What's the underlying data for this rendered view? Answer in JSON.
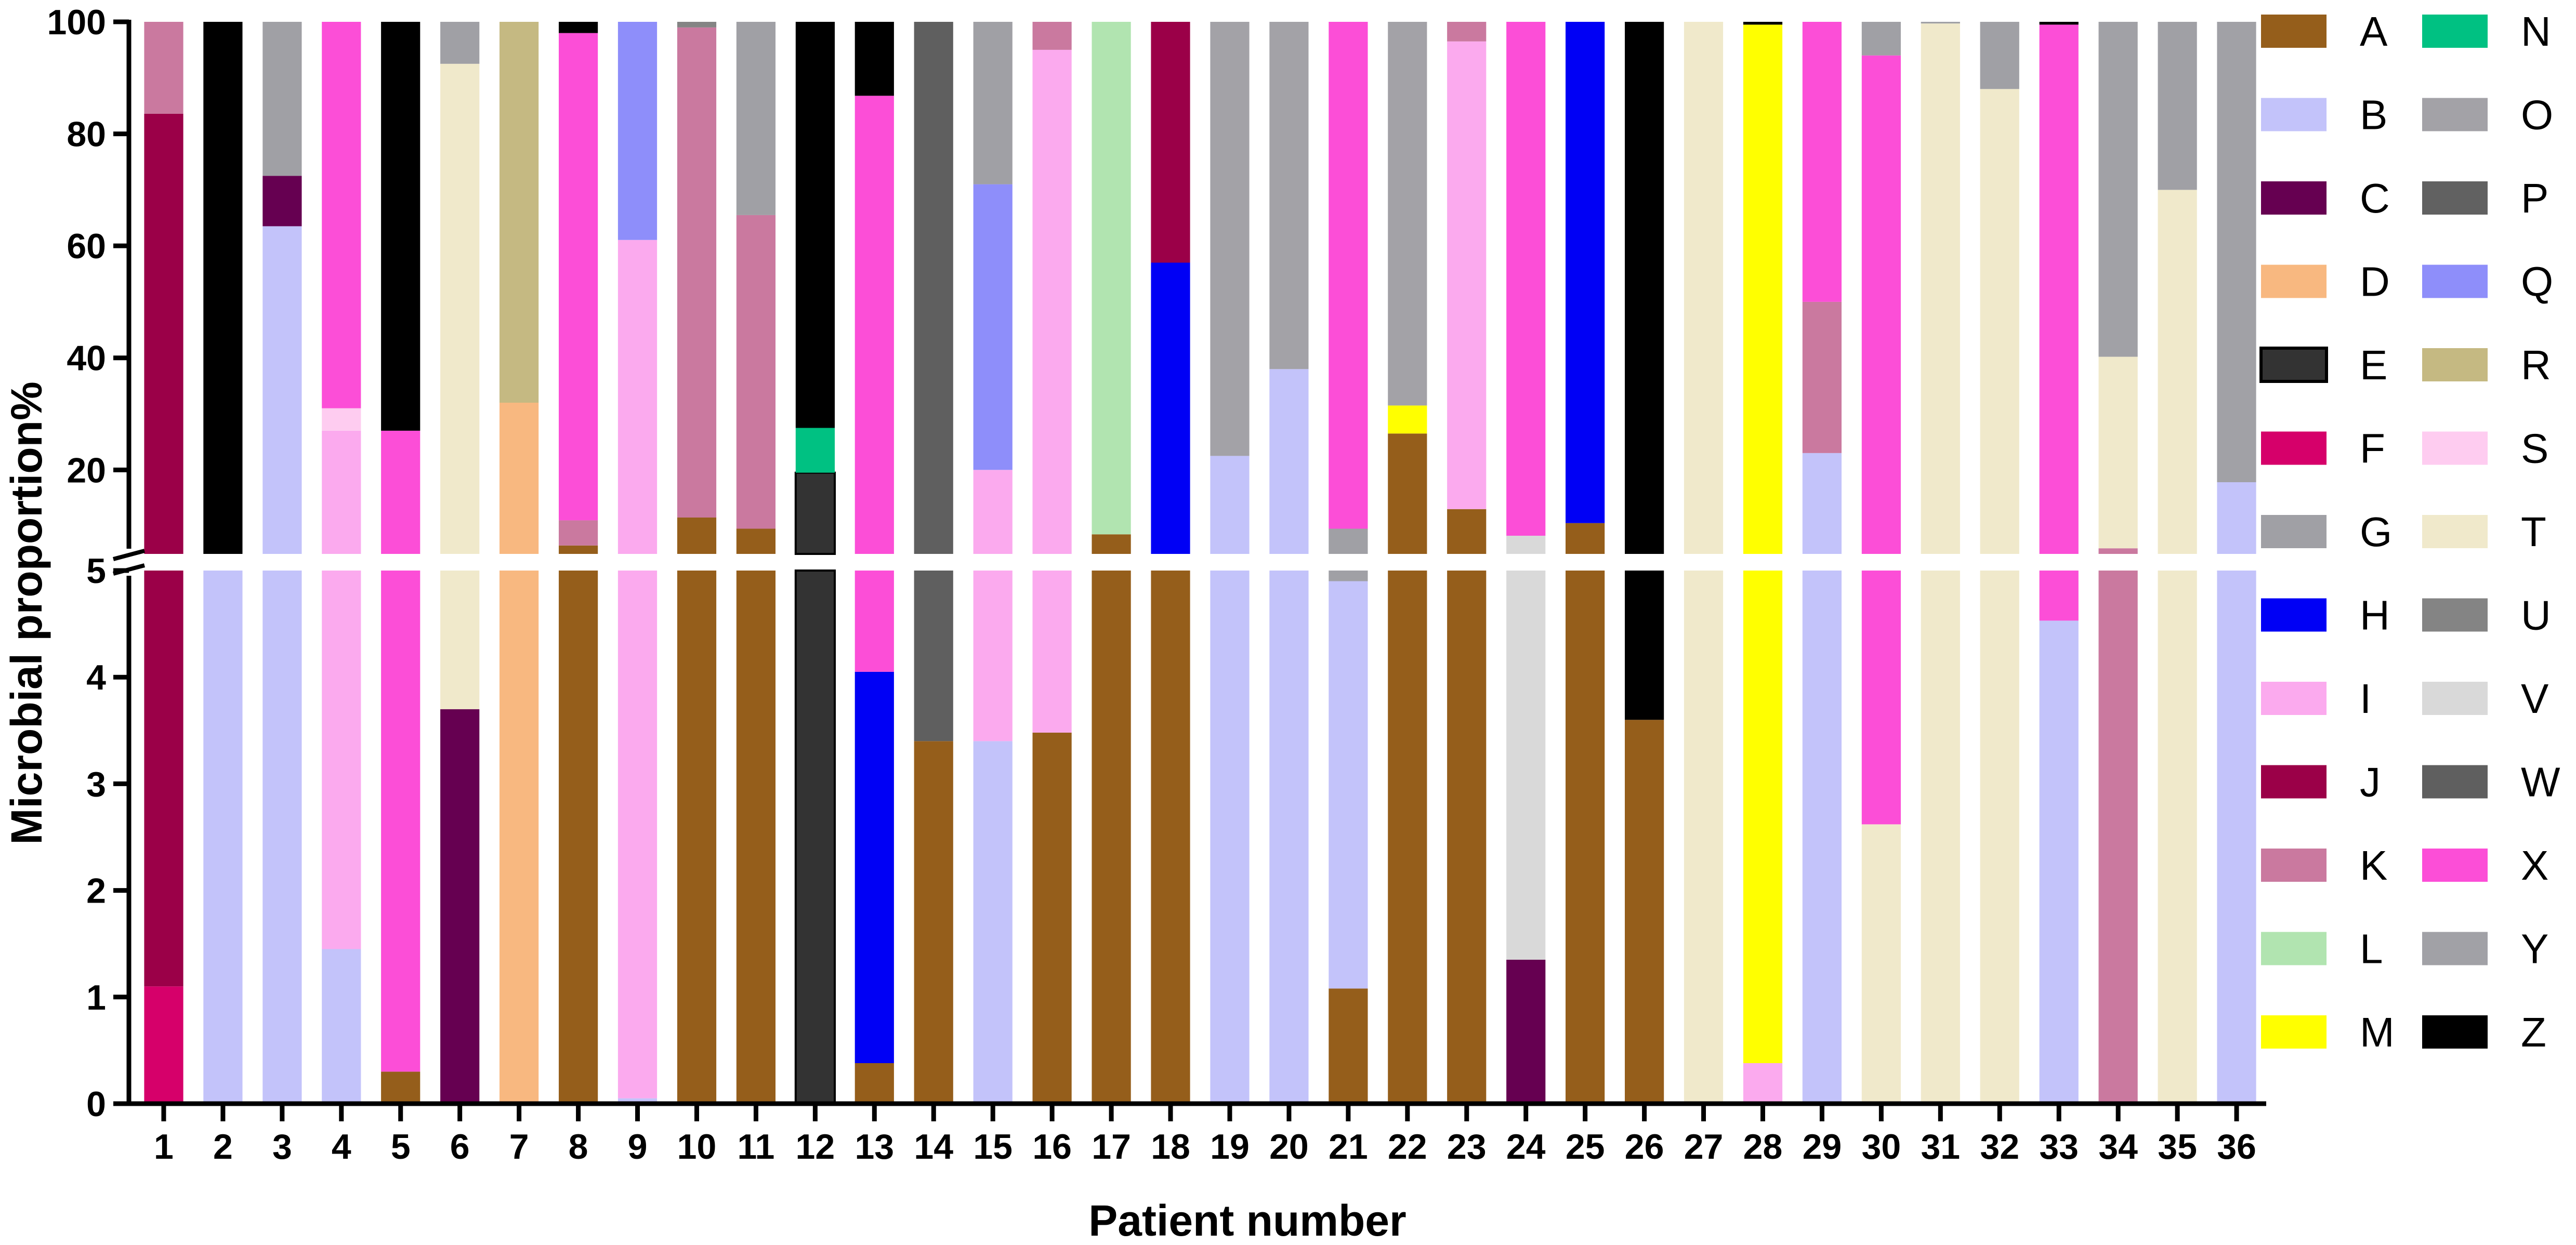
{
  "chart_data": {
    "type": "bar",
    "stacked": true,
    "xlabel": "Patient number",
    "ylabel": "Microbial proportion%",
    "axis_break": {
      "lower_range": [
        0,
        5
      ],
      "upper_range": [
        5,
        100
      ]
    },
    "y_ticks_lower": [
      "0",
      "1",
      "2",
      "3",
      "4",
      "5"
    ],
    "y_ticks_upper": [
      "20",
      "40",
      "60",
      "80",
      "100"
    ],
    "categories": [
      "1",
      "2",
      "3",
      "4",
      "5",
      "6",
      "7",
      "8",
      "9",
      "10",
      "11",
      "12",
      "13",
      "14",
      "15",
      "16",
      "17",
      "18",
      "19",
      "20",
      "21",
      "22",
      "23",
      "24",
      "25",
      "26",
      "27",
      "28",
      "29",
      "30",
      "31",
      "32",
      "33",
      "34",
      "35",
      "36"
    ],
    "taxa": [
      {
        "key": "A",
        "color": "#955E1B"
      },
      {
        "key": "B",
        "color": "#C3C3FA"
      },
      {
        "key": "C",
        "color": "#660051"
      },
      {
        "key": "D",
        "color": "#F8B880"
      },
      {
        "key": "E",
        "color": "#333333"
      },
      {
        "key": "F",
        "color": "#D6006A"
      },
      {
        "key": "G",
        "color": "#A0A0A5"
      },
      {
        "key": "H",
        "color": "#0000F5"
      },
      {
        "key": "I",
        "color": "#FBAAEE"
      },
      {
        "key": "J",
        "color": "#9B0048"
      },
      {
        "key": "K",
        "color": "#CA799F"
      },
      {
        "key": "L",
        "color": "#B1E4B0"
      },
      {
        "key": "M",
        "color": "#FFFF00"
      },
      {
        "key": "N",
        "color": "#00C182"
      },
      {
        "key": "O",
        "color": "#A3A2A7"
      },
      {
        "key": "P",
        "color": "#616161"
      },
      {
        "key": "Q",
        "color": "#8E8EFA"
      },
      {
        "key": "R",
        "color": "#C5B982"
      },
      {
        "key": "S",
        "color": "#FECCF0"
      },
      {
        "key": "T",
        "color": "#F0E9CB"
      },
      {
        "key": "U",
        "color": "#848484"
      },
      {
        "key": "V",
        "color": "#D9D9D9"
      },
      {
        "key": "W",
        "color": "#5F5F5F"
      },
      {
        "key": "X",
        "color": "#FC4ED7"
      },
      {
        "key": "Y",
        "color": "#A1A1A6"
      },
      {
        "key": "Z",
        "color": "#000000"
      }
    ],
    "bars": [
      {
        "patient": "1",
        "segments": [
          [
            "F",
            1.1
          ],
          [
            "J",
            82.5
          ],
          [
            "K",
            16.4
          ]
        ]
      },
      {
        "patient": "2",
        "segments": [
          [
            "B",
            5.0
          ],
          [
            "Z",
            95.0
          ]
        ]
      },
      {
        "patient": "3",
        "segments": [
          [
            "B",
            63.5
          ],
          [
            "C",
            9.0
          ],
          [
            "G",
            27.5
          ]
        ]
      },
      {
        "patient": "4",
        "segments": [
          [
            "B",
            1.45
          ],
          [
            "I",
            25.55
          ],
          [
            "S",
            4.0
          ],
          [
            "X",
            69.0
          ]
        ]
      },
      {
        "patient": "5",
        "segments": [
          [
            "A",
            0.3
          ],
          [
            "X",
            26.7
          ],
          [
            "Z",
            73.0
          ]
        ]
      },
      {
        "patient": "6",
        "segments": [
          [
            "C",
            3.7
          ],
          [
            "T",
            88.8
          ],
          [
            "G",
            7.5
          ]
        ]
      },
      {
        "patient": "7",
        "segments": [
          [
            "D",
            32.0
          ],
          [
            "R",
            68.0
          ]
        ]
      },
      {
        "patient": "8",
        "segments": [
          [
            "A",
            6.5
          ],
          [
            "K",
            4.5
          ],
          [
            "X",
            87.0
          ],
          [
            "Z",
            2.0
          ]
        ]
      },
      {
        "patient": "9",
        "segments": [
          [
            "B",
            0.05
          ],
          [
            "I",
            61.0
          ],
          [
            "Q",
            38.95
          ]
        ]
      },
      {
        "patient": "10",
        "segments": [
          [
            "A",
            11.5
          ],
          [
            "K",
            87.5
          ],
          [
            "U",
            1.0
          ]
        ]
      },
      {
        "patient": "11",
        "segments": [
          [
            "A",
            9.5
          ],
          [
            "K",
            56.0
          ],
          [
            "G",
            34.5
          ]
        ]
      },
      {
        "patient": "12",
        "segments": [
          [
            "E",
            19.5
          ],
          [
            "N",
            8.0
          ],
          [
            "Z",
            72.5
          ]
        ]
      },
      {
        "patient": "13",
        "segments": [
          [
            "A",
            0.38
          ],
          [
            "H",
            3.67
          ],
          [
            "X",
            82.75
          ],
          [
            "Z",
            13.2
          ]
        ]
      },
      {
        "patient": "14",
        "segments": [
          [
            "A",
            3.4
          ],
          [
            "W",
            96.6
          ]
        ]
      },
      {
        "patient": "15",
        "segments": [
          [
            "B",
            3.4
          ],
          [
            "I",
            16.6
          ],
          [
            "Q",
            51.0
          ],
          [
            "G",
            29.0
          ]
        ]
      },
      {
        "patient": "16",
        "segments": [
          [
            "A",
            3.48
          ],
          [
            "I",
            91.52
          ],
          [
            "K",
            5.0
          ]
        ]
      },
      {
        "patient": "17",
        "segments": [
          [
            "A",
            8.5
          ],
          [
            "L",
            91.5
          ]
        ]
      },
      {
        "patient": "18",
        "segments": [
          [
            "A",
            5.0
          ],
          [
            "H",
            52.0
          ],
          [
            "J",
            43.0
          ]
        ]
      },
      {
        "patient": "19",
        "segments": [
          [
            "B",
            22.5
          ],
          [
            "O",
            77.5
          ]
        ]
      },
      {
        "patient": "20",
        "segments": [
          [
            "B",
            38.0
          ],
          [
            "O",
            62.0
          ]
        ]
      },
      {
        "patient": "21",
        "segments": [
          [
            "A",
            1.08
          ],
          [
            "B",
            3.82
          ],
          [
            "G",
            4.6
          ],
          [
            "X",
            90.5
          ]
        ]
      },
      {
        "patient": "22",
        "segments": [
          [
            "A",
            26.5
          ],
          [
            "M",
            5.0
          ],
          [
            "O",
            68.5
          ]
        ]
      },
      {
        "patient": "23",
        "segments": [
          [
            "A",
            13.0
          ],
          [
            "I",
            83.5
          ],
          [
            "K",
            3.5
          ]
        ]
      },
      {
        "patient": "24",
        "segments": [
          [
            "C",
            1.35
          ],
          [
            "V",
            6.9
          ],
          [
            "X",
            91.75
          ]
        ]
      },
      {
        "patient": "25",
        "segments": [
          [
            "A",
            10.5
          ],
          [
            "H",
            89.5
          ]
        ]
      },
      {
        "patient": "26",
        "segments": [
          [
            "A",
            3.6
          ],
          [
            "Z",
            96.4
          ]
        ]
      },
      {
        "patient": "27",
        "segments": [
          [
            "T",
            100.0
          ]
        ]
      },
      {
        "patient": "28",
        "segments": [
          [
            "I",
            0.38
          ],
          [
            "M",
            99.12
          ],
          [
            "Z",
            0.5
          ]
        ]
      },
      {
        "patient": "29",
        "segments": [
          [
            "B",
            23.0
          ],
          [
            "K",
            27.0
          ],
          [
            "X",
            50.0
          ]
        ]
      },
      {
        "patient": "30",
        "segments": [
          [
            "T",
            2.62
          ],
          [
            "X",
            91.38
          ],
          [
            "G",
            6.0
          ]
        ]
      },
      {
        "patient": "31",
        "segments": [
          [
            "T",
            99.7
          ],
          [
            "G",
            0.3
          ]
        ]
      },
      {
        "patient": "32",
        "segments": [
          [
            "T",
            88.0
          ],
          [
            "G",
            12.0
          ]
        ]
      },
      {
        "patient": "33",
        "segments": [
          [
            "B",
            4.53
          ],
          [
            "X",
            94.97
          ],
          [
            "Z",
            0.5
          ]
        ]
      },
      {
        "patient": "34",
        "segments": [
          [
            "K",
            6.0
          ],
          [
            "T",
            34.2
          ],
          [
            "Y",
            59.8
          ]
        ]
      },
      {
        "patient": "35",
        "segments": [
          [
            "T",
            70.0
          ],
          [
            "G",
            30.0
          ]
        ]
      },
      {
        "patient": "36",
        "segments": [
          [
            "B",
            17.8
          ],
          [
            "Y",
            82.2
          ]
        ]
      }
    ]
  }
}
